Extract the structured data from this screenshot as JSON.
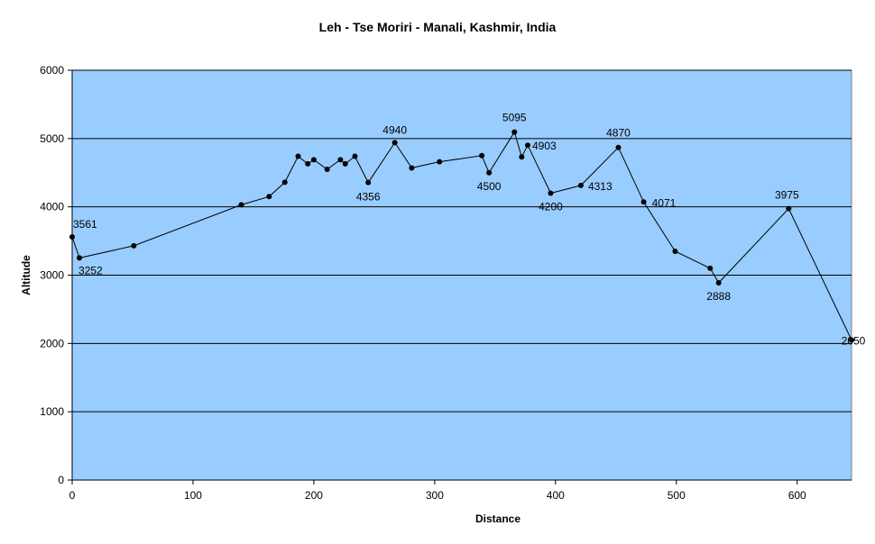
{
  "colors": {
    "plot_area": "#99ccff",
    "line": "#000000",
    "gridline": "#000000",
    "background": "#ffffff"
  },
  "chart_data": {
    "type": "scatter",
    "title": "Leh - Tse Moriri - Manali, Kashmir, India",
    "xlabel": "Distance",
    "ylabel": "Altitude",
    "xlim": [
      0,
      645
    ],
    "ylim": [
      0,
      6000
    ],
    "x_ticks": [
      0,
      100,
      200,
      300,
      400,
      500,
      600
    ],
    "y_ticks": [
      0,
      1000,
      2000,
      3000,
      4000,
      5000,
      6000
    ],
    "grid": "horizontal major gridlines",
    "legend": "none",
    "series": [
      {
        "points": [
          {
            "x": 0,
            "y": 3561,
            "label": "3561"
          },
          {
            "x": 6,
            "y": 3252,
            "label": "3252"
          },
          {
            "x": 51,
            "y": 3430
          },
          {
            "x": 140,
            "y": 4030
          },
          {
            "x": 163,
            "y": 4150
          },
          {
            "x": 176,
            "y": 4360
          },
          {
            "x": 187,
            "y": 4740
          },
          {
            "x": 195,
            "y": 4630
          },
          {
            "x": 200,
            "y": 4690
          },
          {
            "x": 211,
            "y": 4550
          },
          {
            "x": 222,
            "y": 4690
          },
          {
            "x": 226,
            "y": 4630
          },
          {
            "x": 234,
            "y": 4740
          },
          {
            "x": 245,
            "y": 4356,
            "label": "4356"
          },
          {
            "x": 267,
            "y": 4940,
            "label": "4940"
          },
          {
            "x": 281,
            "y": 4570
          },
          {
            "x": 304,
            "y": 4660
          },
          {
            "x": 339,
            "y": 4750
          },
          {
            "x": 345,
            "y": 4500,
            "label": "4500"
          },
          {
            "x": 366,
            "y": 5095,
            "label": "5095"
          },
          {
            "x": 372,
            "y": 4730
          },
          {
            "x": 377,
            "y": 4903,
            "label": "4903"
          },
          {
            "x": 396,
            "y": 4200,
            "label": "4200"
          },
          {
            "x": 421,
            "y": 4313,
            "label": "4313"
          },
          {
            "x": 452,
            "y": 4870,
            "label": "4870"
          },
          {
            "x": 473,
            "y": 4071,
            "label": "4071"
          },
          {
            "x": 499,
            "y": 3350
          },
          {
            "x": 528,
            "y": 3100
          },
          {
            "x": 535,
            "y": 2888,
            "label": "2888"
          },
          {
            "x": 593,
            "y": 3975,
            "label": "3975"
          },
          {
            "x": 645,
            "y": 2050,
            "label": "2050"
          }
        ]
      }
    ]
  }
}
